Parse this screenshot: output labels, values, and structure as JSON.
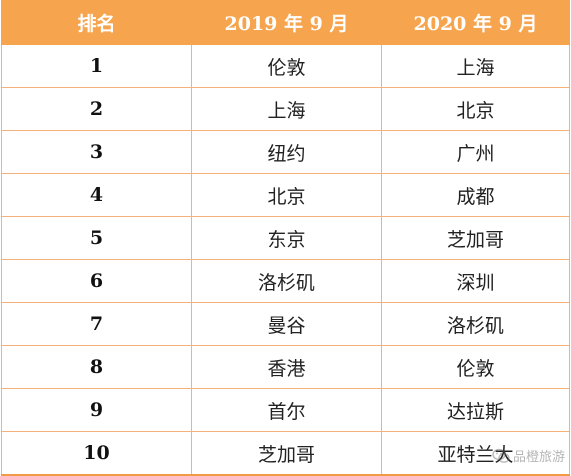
{
  "table": {
    "headers": {
      "rank": "排名",
      "col_2019": "2019 年 9 月",
      "col_2020": "2020 年 9 月"
    },
    "rows": [
      {
        "rank": "1",
        "city_2019": "伦敦",
        "city_2020": "上海"
      },
      {
        "rank": "2",
        "city_2019": "上海",
        "city_2020": "北京"
      },
      {
        "rank": "3",
        "city_2019": "纽约",
        "city_2020": "广州"
      },
      {
        "rank": "4",
        "city_2019": "北京",
        "city_2020": "成都"
      },
      {
        "rank": "5",
        "city_2019": "东京",
        "city_2020": "芝加哥"
      },
      {
        "rank": "6",
        "city_2019": "洛杉矶",
        "city_2020": "深圳"
      },
      {
        "rank": "7",
        "city_2019": "曼谷",
        "city_2020": "洛杉矶"
      },
      {
        "rank": "8",
        "city_2019": "香港",
        "city_2020": "伦敦"
      },
      {
        "rank": "9",
        "city_2019": "首尔",
        "city_2020": "达拉斯"
      },
      {
        "rank": "10",
        "city_2019": "芝加哥",
        "city_2020": "亚特兰大"
      }
    ]
  },
  "watermark": {
    "text": "品橙旅游",
    "icon": "wechat-icon"
  },
  "colors": {
    "header_bg": "#f6a54e",
    "header_text": "#ffffff",
    "grid_line": "#f4b27a"
  }
}
